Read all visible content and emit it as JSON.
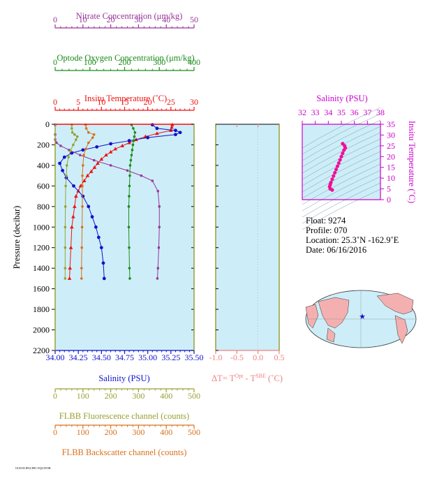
{
  "colors": {
    "nitrate": "#993399",
    "oxygen": "#1a8c1a",
    "temperature": "#ee1111",
    "salinity": "#1111cc",
    "fluorescence": "#99a030",
    "backscatter": "#d9701a",
    "dt": "#f08080",
    "inset": "#cc00cc",
    "plot_bg": "#cdeef8",
    "land": "#f4b0b0",
    "ocean": "#cdeef8"
  },
  "axes": {
    "nitrate": {
      "label": "Nitrate Concentration (μm/kg)",
      "ticks": [
        "0",
        "10",
        "20",
        "30",
        "40",
        "50"
      ]
    },
    "oxygen": {
      "label": "Optode Oxygen Concentration (μm/kg)",
      "ticks": [
        "0",
        "100",
        "200",
        "300",
        "400"
      ]
    },
    "temperature": {
      "label": "Insitu Temperature (˚C)",
      "ticks": [
        "0",
        "5",
        "10",
        "15",
        "20",
        "25",
        "30"
      ]
    },
    "pressure": {
      "label": "Pressure (decibar)",
      "ticks": [
        "0",
        "200",
        "400",
        "600",
        "800",
        "1000",
        "1200",
        "1400",
        "1600",
        "1800",
        "2000",
        "2200"
      ]
    },
    "salinity": {
      "label": "Salinity (PSU)",
      "ticks": [
        "34.00",
        "34.25",
        "34.50",
        "34.75",
        "35.00",
        "35.25",
        "35.50"
      ]
    },
    "fluorescence": {
      "label": "FLBB Fluorescence channel (counts)",
      "ticks": [
        "0",
        "100",
        "200",
        "300",
        "400",
        "500"
      ]
    },
    "backscatter": {
      "label": "FLBB Backscatter channel (counts)",
      "ticks": [
        "0",
        "100",
        "200",
        "300",
        "400",
        "500"
      ]
    },
    "dt": {
      "label_prefix": "ΔT= T",
      "sup1": "Opt",
      "label_mid": " - T",
      "sup2": "SBE",
      "label_suffix": " (˚C)",
      "ticks": [
        "-1.0",
        "-0.5",
        "0.0",
        "0.5"
      ]
    },
    "inset_salinity": {
      "label": "Salinity (PSU)",
      "ticks": [
        "32",
        "33",
        "34",
        "35",
        "36",
        "37",
        "38"
      ]
    },
    "inset_temperature": {
      "label": "Insitu Temperature (˚C)",
      "ticks": [
        "0",
        "5",
        "10",
        "15",
        "20",
        "25",
        "30",
        "35"
      ]
    }
  },
  "info": {
    "float": "Float:  9274",
    "profile": "Profile:  070",
    "location": "Location:  25.3˚N  -162.9˚E",
    "date": "Date:  06/16/2016"
  },
  "footer": "OCEAN IPACIFIC EQUATOR",
  "chart_data": {
    "type": "line",
    "y_axis": "pressure",
    "ylim": [
      2200,
      0
    ],
    "series": [
      {
        "name": "temperature",
        "xlim": [
          0,
          30
        ],
        "x": [
          25.3,
          25.2,
          25.0,
          22.0,
          19.5,
          17.5,
          16.0,
          14.5,
          13.0,
          12.0,
          11.0,
          10.0,
          9.2,
          8.5,
          7.8,
          7.0,
          6.3,
          5.5,
          5.0,
          4.5,
          4.2,
          3.9,
          3.6,
          3.4,
          3.2,
          3.1
        ],
        "y": [
          5,
          30,
          60,
          90,
          120,
          150,
          180,
          210,
          240,
          270,
          300,
          340,
          380,
          420,
          460,
          500,
          550,
          600,
          650,
          700,
          800,
          900,
          1000,
          1200,
          1400,
          1500
        ]
      },
      {
        "name": "salinity",
        "xlim": [
          34.0,
          35.5
        ],
        "x": [
          35.05,
          35.1,
          35.3,
          35.35,
          35.3,
          35.0,
          34.8,
          34.6,
          34.45,
          34.3,
          34.18,
          34.1,
          34.05,
          34.08,
          34.12,
          34.2,
          34.3,
          34.36,
          34.4,
          34.44,
          34.47,
          34.5,
          34.52,
          34.53
        ],
        "y": [
          5,
          40,
          60,
          80,
          100,
          130,
          160,
          190,
          220,
          250,
          280,
          320,
          380,
          450,
          520,
          600,
          700,
          800,
          900,
          1000,
          1100,
          1200,
          1350,
          1500
        ]
      },
      {
        "name": "nitrate",
        "xlim": [
          0,
          50
        ],
        "x": [
          0,
          0,
          0,
          0.5,
          2,
          5,
          9,
          14,
          20,
          26,
          31,
          35,
          37,
          37.5,
          37.5,
          37.3,
          37.0,
          36.8
        ],
        "y": [
          5,
          100,
          150,
          180,
          210,
          250,
          300,
          350,
          400,
          450,
          500,
          550,
          650,
          800,
          1000,
          1200,
          1400,
          1500
        ]
      },
      {
        "name": "oxygen",
        "xlim": [
          0,
          400
        ],
        "x": [
          220,
          225,
          230,
          228,
          226,
          224,
          222,
          220,
          218,
          216,
          215,
          214,
          213,
          212,
          212,
          213,
          214,
          215
        ],
        "y": [
          5,
          40,
          80,
          120,
          160,
          200,
          250,
          300,
          350,
          400,
          500,
          600,
          700,
          800,
          1000,
          1200,
          1400,
          1500
        ]
      },
      {
        "name": "fluorescence",
        "xlim": [
          0,
          500
        ],
        "x": [
          60,
          60,
          62,
          70,
          80,
          75,
          65,
          55,
          48,
          42,
          40,
          38,
          37,
          36,
          36,
          36,
          36
        ],
        "y": [
          5,
          40,
          80,
          100,
          120,
          150,
          200,
          260,
          320,
          400,
          500,
          600,
          800,
          1000,
          1200,
          1400,
          1500
        ]
      },
      {
        "name": "backscatter",
        "xlim": [
          0,
          500
        ],
        "x": [
          110,
          112,
          120,
          140,
          135,
          120,
          110,
          103,
          100,
          98,
          98,
          98,
          97,
          96,
          95,
          95
        ],
        "y": [
          5,
          40,
          80,
          100,
          130,
          180,
          240,
          300,
          400,
          500,
          600,
          800,
          1000,
          1200,
          1400,
          1500
        ]
      }
    ],
    "inset_ts": {
      "type": "scatter",
      "xlim": [
        32,
        38
      ],
      "ylim": [
        0,
        35
      ],
      "points": [
        [
          35.1,
          26.0
        ],
        [
          35.25,
          25.0
        ],
        [
          35.3,
          24.0
        ],
        [
          35.2,
          23.0
        ],
        [
          35.1,
          21.5
        ],
        [
          35.0,
          20.0
        ],
        [
          34.9,
          18.5
        ],
        [
          34.8,
          17.0
        ],
        [
          34.7,
          15.5
        ],
        [
          34.6,
          14.0
        ],
        [
          34.5,
          12.5
        ],
        [
          34.4,
          11.0
        ],
        [
          34.3,
          9.5
        ],
        [
          34.2,
          8.0
        ],
        [
          34.15,
          7.0
        ],
        [
          34.1,
          6.0
        ],
        [
          34.15,
          5.0
        ],
        [
          34.3,
          4.5
        ]
      ]
    }
  }
}
